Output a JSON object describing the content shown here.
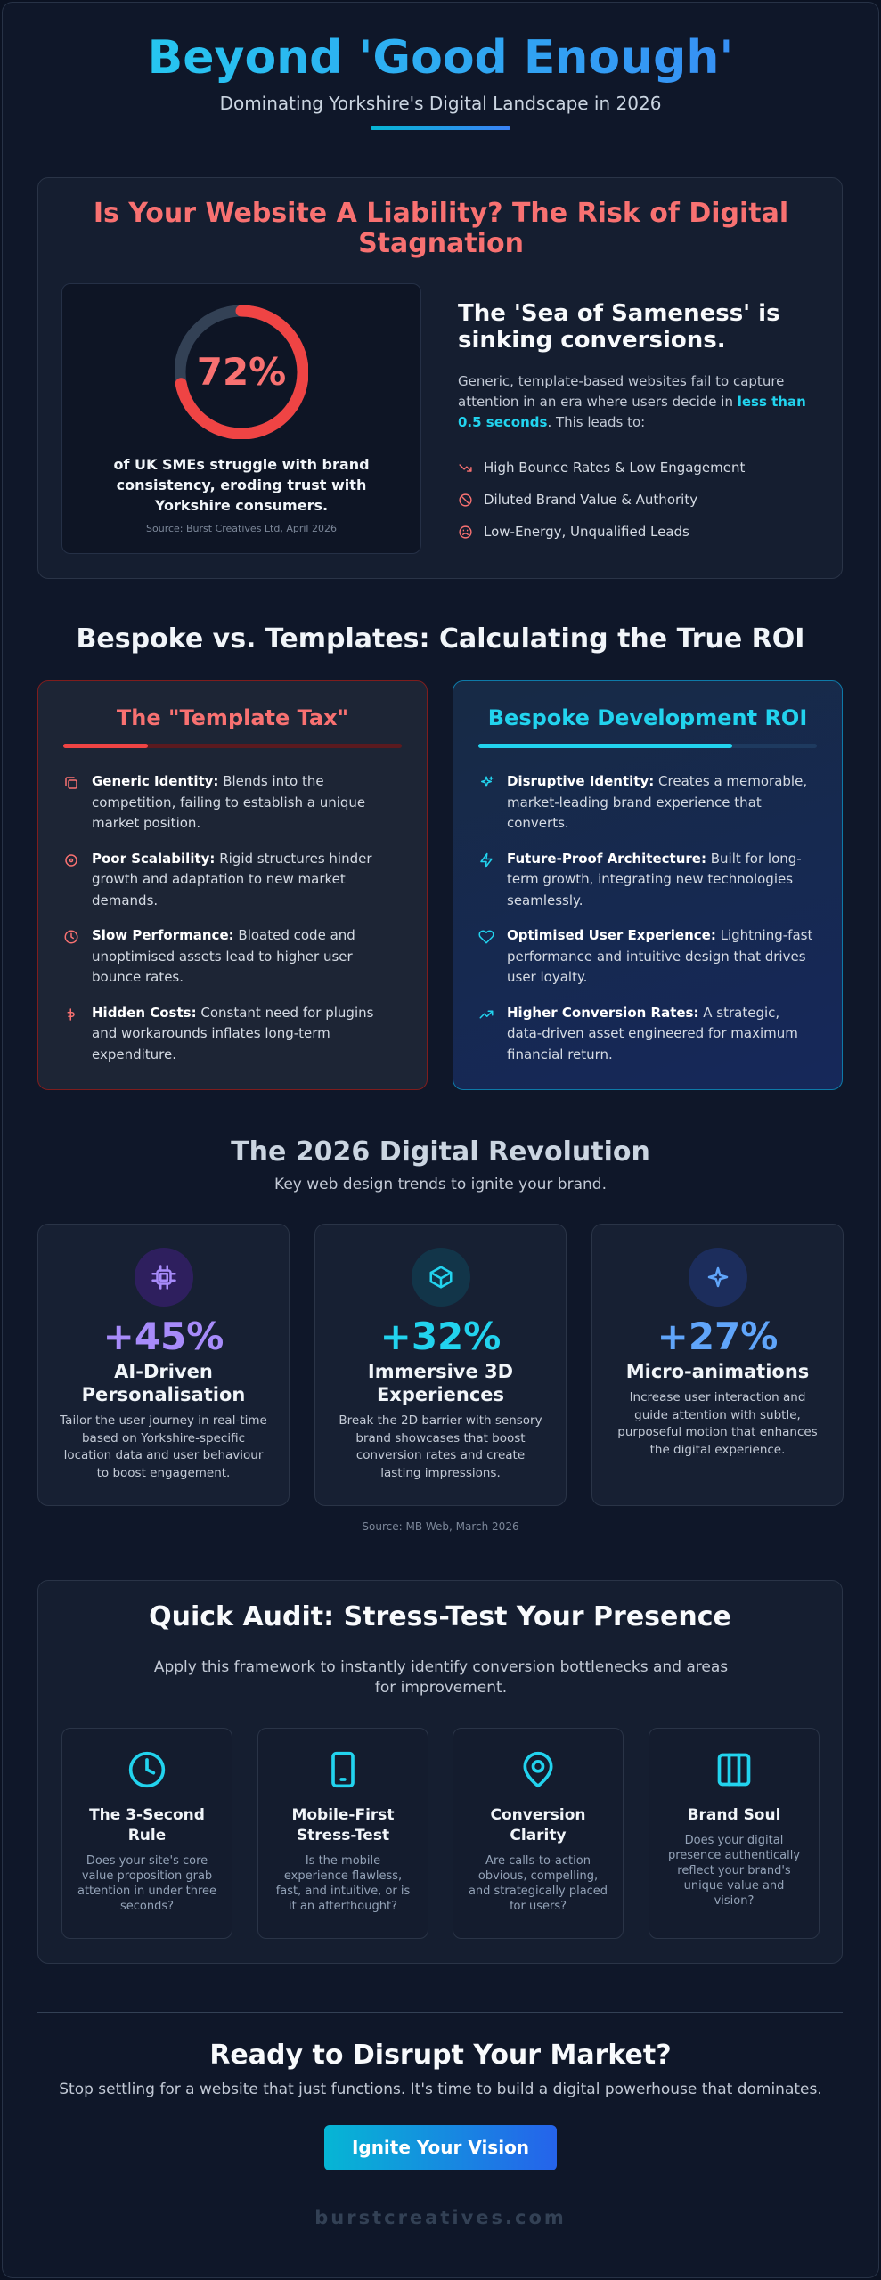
{
  "header": {
    "title": "Beyond 'Good Enough'",
    "subtitle": "Dominating Yorkshire's Digital Landscape in 2026"
  },
  "risk": {
    "heading": "Is Your Website A Liability? The Risk of Digital Stagnation",
    "stat": {
      "value": 72,
      "label": "72%"
    },
    "stat_caption": "of UK SMEs struggle with brand consistency, eroding trust with Yorkshire consumers.",
    "source": "Source: Burst Creatives Ltd, April 2026",
    "subheading": "The 'Sea of Sameness' is sinking conversions.",
    "text_before": "Generic, template-based websites fail to capture attention in an era where users decide in",
    "text_highlight": "less than 0.5 seconds",
    "text_after": ". This leads to:",
    "effects": [
      "High Bounce Rates & Low Engagement",
      "Diluted Brand Value & Authority",
      "Low-Energy, Unqualified Leads"
    ]
  },
  "comparison": {
    "title": "Bespoke vs. Templates: Calculating the True ROI",
    "columns": [
      {
        "title": "The \"Template Tax\"",
        "items": [
          {
            "label": "Generic Identity:",
            "text": "Blends into the competition, failing to establish a unique market position."
          },
          {
            "label": "Poor Scalability:",
            "text": "Rigid structures hinder growth and adaptation to new market demands."
          },
          {
            "label": "Slow Performance:",
            "text": "Bloated code and unoptimised assets lead to higher user bounce rates."
          },
          {
            "label": "Hidden Costs:",
            "text": "Constant need for plugins and workarounds inflates long-term expenditure."
          }
        ]
      },
      {
        "title": "Bespoke Development ROI",
        "items": [
          {
            "label": "Disruptive Identity:",
            "text": "Creates a memorable, market-leading brand experience that converts."
          },
          {
            "label": "Future-Proof Architecture:",
            "text": "Built for long-term growth, integrating new technologies seamlessly."
          },
          {
            "label": "Optimised User Experience:",
            "text": "Lightning-fast performance and intuitive design that drives user loyalty."
          },
          {
            "label": "Higher Conversion Rates:",
            "text": "A strategic, data-driven asset engineered for maximum financial return."
          }
        ]
      }
    ]
  },
  "trends": {
    "title": "The 2026 Digital Revolution",
    "subtitle": "Key web design trends to ignite your brand.",
    "cards": [
      {
        "stat": "+45%",
        "title": "AI-Driven Personalisation",
        "text": "Tailor the user journey in real-time based on Yorkshire-specific location data and user behaviour to boost engagement."
      },
      {
        "stat": "+32%",
        "title": "Immersive 3D Experiences",
        "text": "Break the 2D barrier with sensory brand showcases that boost conversion rates and create lasting impressions."
      },
      {
        "stat": "+27%",
        "title": "Micro-animations",
        "text": "Increase user interaction and guide attention with subtle, purposeful motion that enhances the digital experience."
      }
    ],
    "source": "Source: MB Web, March 2026"
  },
  "audit": {
    "title": "Quick Audit: Stress-Test Your Presence",
    "intro": "Apply this framework to instantly identify conversion bottlenecks and areas for improvement.",
    "cards": [
      {
        "title": "The 3-Second Rule",
        "text": "Does your site's core value proposition grab attention in under three seconds?"
      },
      {
        "title": "Mobile-First Stress-Test",
        "text": "Is the mobile experience flawless, fast, and intuitive, or is it an afterthought?"
      },
      {
        "title": "Conversion Clarity",
        "text": "Are calls-to-action obvious, compelling, and strategically placed for users?"
      },
      {
        "title": "Brand Soul",
        "text": "Does your digital presence authentically reflect your brand's unique value and vision?"
      }
    ]
  },
  "cta": {
    "title": "Ready to Disrupt Your Market?",
    "text": "Stop settling for a website that just functions. It's time to build a digital powerhouse that dominates.",
    "button": "Ignite Your Vision"
  },
  "footer": "burstcreatives.com"
}
